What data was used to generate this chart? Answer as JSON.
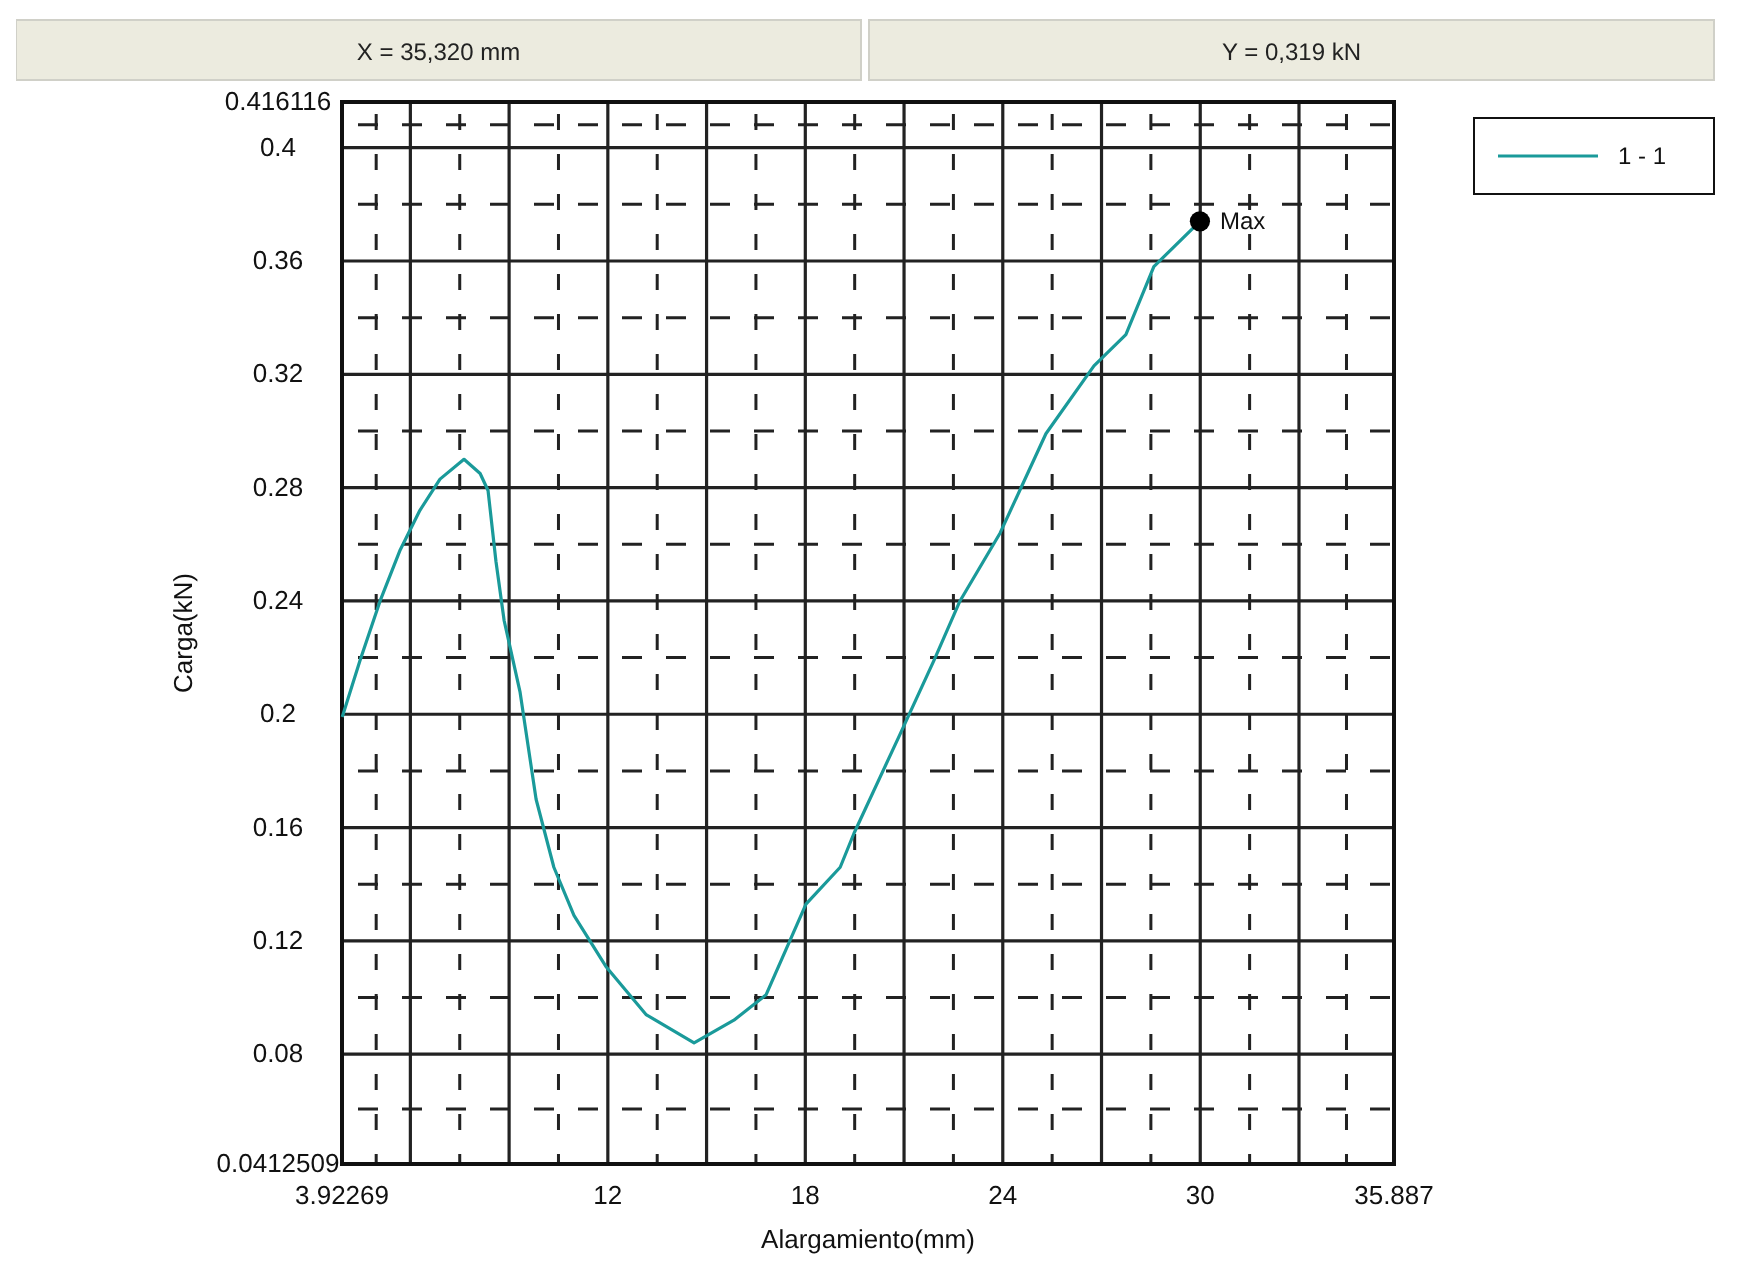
{
  "chart_data": {
    "type": "line",
    "xlabel": "Alargamiento(mm)",
    "ylabel": "Carga(kN)",
    "annotations": [
      "X = 35,320 mm",
      "Y = 0,319 kN",
      {
        "text": "Max",
        "x": 29.99,
        "y": 0.374
      }
    ],
    "xlim": [
      3.92269,
      35.887
    ],
    "xticks": [
      3.92269,
      {
        "value": 6,
        "label": null
      },
      {
        "value": 9,
        "label": null
      },
      12,
      {
        "value": 15,
        "label": null
      },
      18,
      {
        "value": 21,
        "label": null
      },
      24,
      {
        "value": 27,
        "label": null
      },
      30,
      {
        "value": 33,
        "label": null
      },
      35.887
    ],
    "ylim": [
      0.0412509,
      0.416116
    ],
    "yticks": [
      0.0412509,
      0.08,
      0.12,
      0.16,
      0.2,
      0.24,
      0.28,
      0.32,
      0.36,
      0.4,
      0.416116
    ],
    "grid": true,
    "legend": "top right",
    "line_style": "solid",
    "series": [
      {
        "name": "1 - 1",
        "color": "#1a9a9a",
        "x": [
          3.93,
          4.47,
          5.08,
          5.69,
          6.29,
          6.9,
          7.63,
          8.12,
          8.36,
          8.6,
          8.85,
          9.33,
          9.82,
          10.36,
          10.97,
          11.94,
          13.16,
          14.62,
          15.83,
          16.81,
          18.02,
          19.06,
          19.48,
          20.88,
          21.91,
          22.7,
          23.92,
          25.31,
          26.77,
          27.74,
          28.59,
          29.2,
          29.99
        ],
        "values": [
          0.199,
          0.219,
          0.24,
          0.258,
          0.272,
          0.283,
          0.29,
          0.285,
          0.279,
          0.254,
          0.233,
          0.208,
          0.17,
          0.146,
          0.129,
          0.111,
          0.094,
          0.084,
          0.092,
          0.101,
          0.133,
          0.146,
          0.158,
          0.193,
          0.219,
          0.24,
          0.264,
          0.299,
          0.323,
          0.334,
          0.358,
          0.365,
          0.374
        ]
      },
      {
        "type": "scatter",
        "marker": "circle",
        "color": "#000000",
        "x": [
          29.99
        ],
        "values": [
          0.374
        ]
      }
    ]
  }
}
